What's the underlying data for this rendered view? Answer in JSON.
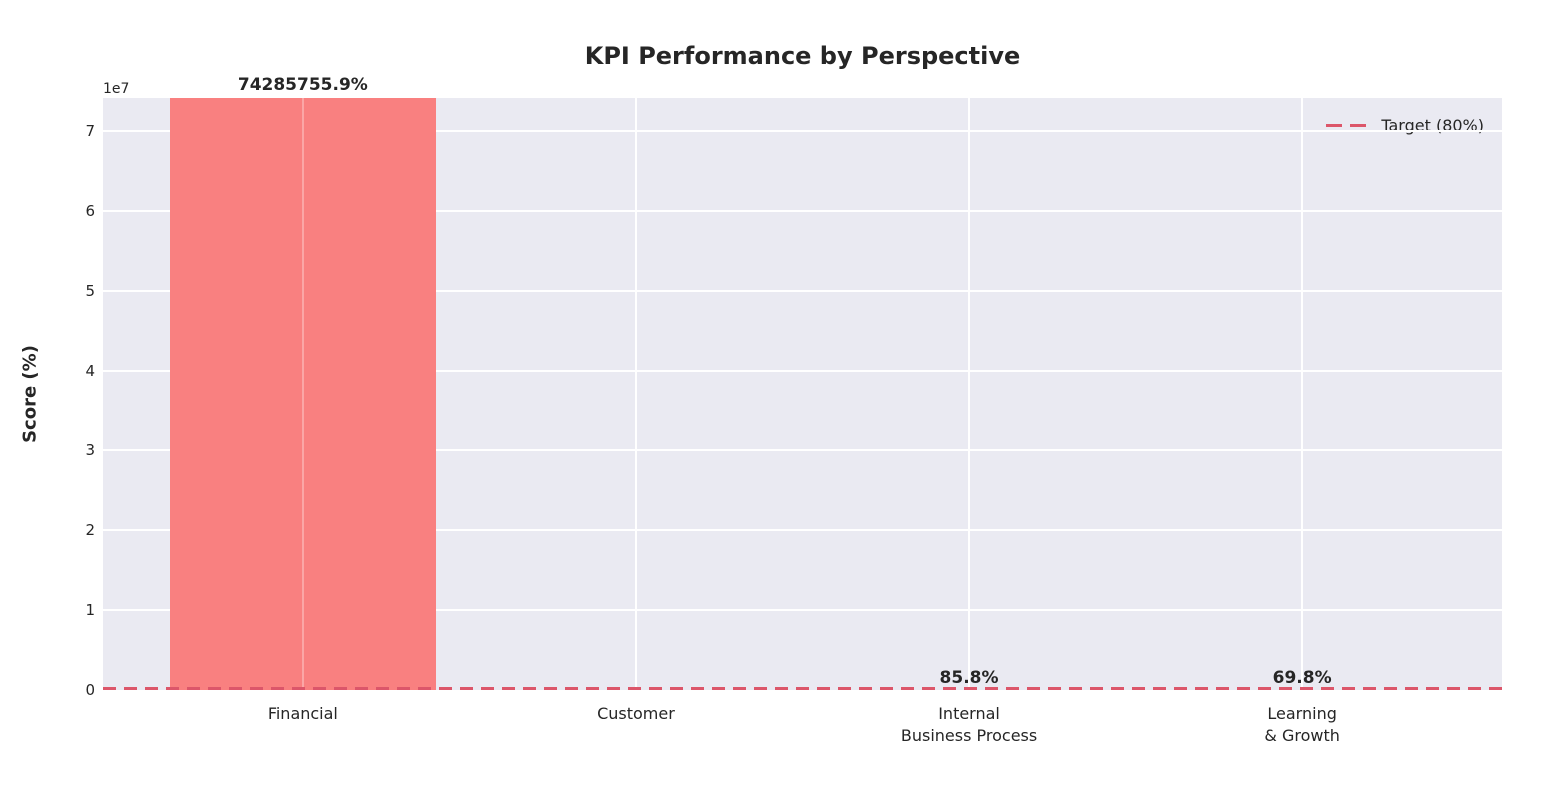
{
  "title": "KPI Performance by Perspective",
  "colors": {
    "bar": "#f98080",
    "target": "#dc566a",
    "plot_background": "#eaeaf2",
    "grid": "#ffffff",
    "text": "#262626"
  },
  "chart_data": {
    "type": "bar",
    "title": "KPI Performance by Perspective",
    "xlabel": "",
    "ylabel": "Score (%)",
    "categories": [
      "Financial",
      "Customer",
      "Internal\nBusiness Process",
      "Learning\n& Growth"
    ],
    "values": [
      74285755.9,
      null,
      85.8,
      69.8
    ],
    "bar_labels": [
      "74285755.9%",
      null,
      "85.8%",
      "69.8%"
    ],
    "bar_color": "#f98080",
    "bar_width_fraction": 0.8,
    "grid": true,
    "plot_bg": "#eaeaf2",
    "grid_color": "#ffffff",
    "target_line": {
      "value": 80,
      "label": "Target (80%)",
      "color": "#dc566a",
      "style": "dashed"
    },
    "legend": {
      "position": "upper right",
      "entries": [
        {
          "label": "Target (80%)",
          "color": "#dc566a",
          "line_style": "dashed"
        }
      ]
    },
    "y_axis": {
      "label": "Score (%)",
      "offset_text": "1e7",
      "scale_factor": 10000000,
      "ticks": [
        0,
        10000000,
        20000000,
        30000000,
        40000000,
        50000000,
        60000000,
        70000000
      ],
      "tick_labels": [
        "0",
        "1",
        "2",
        "3",
        "4",
        "5",
        "6",
        "7"
      ],
      "ylim": [
        0,
        74130000
      ]
    }
  }
}
